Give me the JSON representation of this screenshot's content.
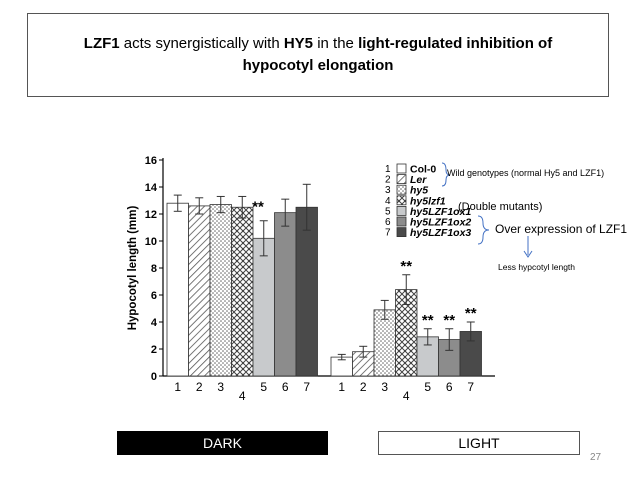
{
  "title": {
    "p1": "LZF1",
    "p2": " acts synergistically with ",
    "p3": "HY5",
    "p4": " in the ",
    "p5": "light-regulated inhibition of hypocotyl elongation"
  },
  "chart_data": {
    "type": "bar",
    "ylabel": "Hypocotyl length (mm)",
    "ylim": [
      0,
      16
    ],
    "yticks": [
      0,
      2,
      4,
      6,
      8,
      10,
      12,
      14,
      16
    ],
    "groups": [
      {
        "name": "DARK",
        "values": [
          12.8,
          12.6,
          12.7,
          12.5,
          10.2,
          12.1,
          12.5
        ],
        "errors": [
          0.6,
          0.6,
          0.6,
          0.8,
          1.3,
          1.0,
          1.7
        ],
        "stars": [
          "",
          "",
          "",
          "**",
          "",
          "",
          ""
        ],
        "labels": [
          "1",
          "2",
          "3",
          "4",
          "5",
          "6",
          "7"
        ]
      },
      {
        "name": "LIGHT",
        "values": [
          1.4,
          1.8,
          4.9,
          6.4,
          2.9,
          2.7,
          3.3
        ],
        "errors": [
          0.2,
          0.4,
          0.7,
          1.1,
          0.6,
          0.8,
          0.7
        ],
        "stars": [
          "",
          "",
          "",
          "**",
          "**",
          "**",
          "**"
        ],
        "labels": [
          "1",
          "2",
          "3",
          "4",
          "5",
          "6",
          "7"
        ]
      }
    ],
    "legend": [
      {
        "num": "1",
        "label": "Col-0",
        "pattern": "white"
      },
      {
        "num": "2",
        "label": "Ler",
        "pattern": "diag"
      },
      {
        "num": "3",
        "label": "hy5",
        "pattern": "dots"
      },
      {
        "num": "4",
        "label": "hy5lzf1",
        "pattern": "cross"
      },
      {
        "num": "5",
        "label": "hy5LZF1ox1",
        "pattern": "lightgray"
      },
      {
        "num": "6",
        "label": "hy5LZF1ox2",
        "pattern": "midgray"
      },
      {
        "num": "7",
        "label": "hy5LZF1ox3",
        "pattern": "darkgray"
      }
    ]
  },
  "annotations": {
    "wild": "Wild genotypes  (normal Hy5 and LZF1)",
    "double": "(Double mutants)",
    "over": "Over expression of LZF1",
    "less": "Less hypcotyl length"
  },
  "colors": {
    "accent_blue": "#4472c4",
    "light_bar": "#c8cacc",
    "mid_bar": "#8c8c8c",
    "dark_bar": "#4a4a4a"
  },
  "footer": {
    "dark": "DARK",
    "light": "LIGHT",
    "page": "27"
  }
}
